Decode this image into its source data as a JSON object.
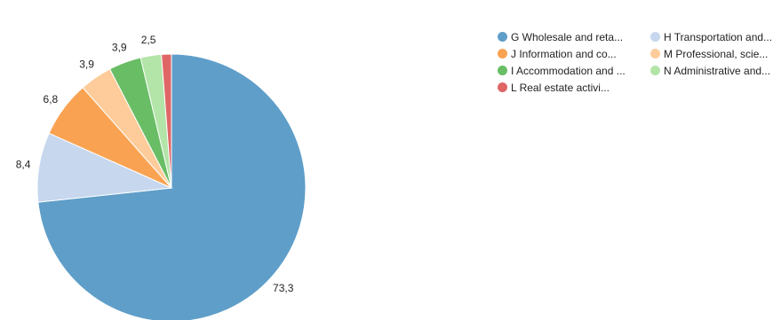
{
  "chart_data": {
    "type": "pie",
    "slices": [
      {
        "label": "G Wholesale and reta...",
        "value": 73.3,
        "value_label": "73,3",
        "color": "#5f9ec9"
      },
      {
        "label": "H Transportation and...",
        "value": 8.4,
        "value_label": "8,4",
        "color": "#c6d7ee"
      },
      {
        "label": "J Information and co...",
        "value": 6.8,
        "value_label": "6,8",
        "color": "#f9a352"
      },
      {
        "label": "M Professional, scie...",
        "value": 3.9,
        "value_label": "3,9",
        "color": "#fdcc9a"
      },
      {
        "label": "I Accommodation and ...",
        "value": 3.9,
        "value_label": "3,9",
        "color": "#69bd65"
      },
      {
        "label": "N Administrative and...",
        "value": 2.5,
        "value_label": "2,5",
        "color": "#b3e4a8"
      },
      {
        "label": "L Real estate activi...",
        "value": 1.2,
        "value_label": "",
        "color": "#e06666"
      }
    ],
    "legend_position": "top-right",
    "legend_order": [
      0,
      1,
      2,
      3,
      4,
      5,
      6
    ]
  }
}
